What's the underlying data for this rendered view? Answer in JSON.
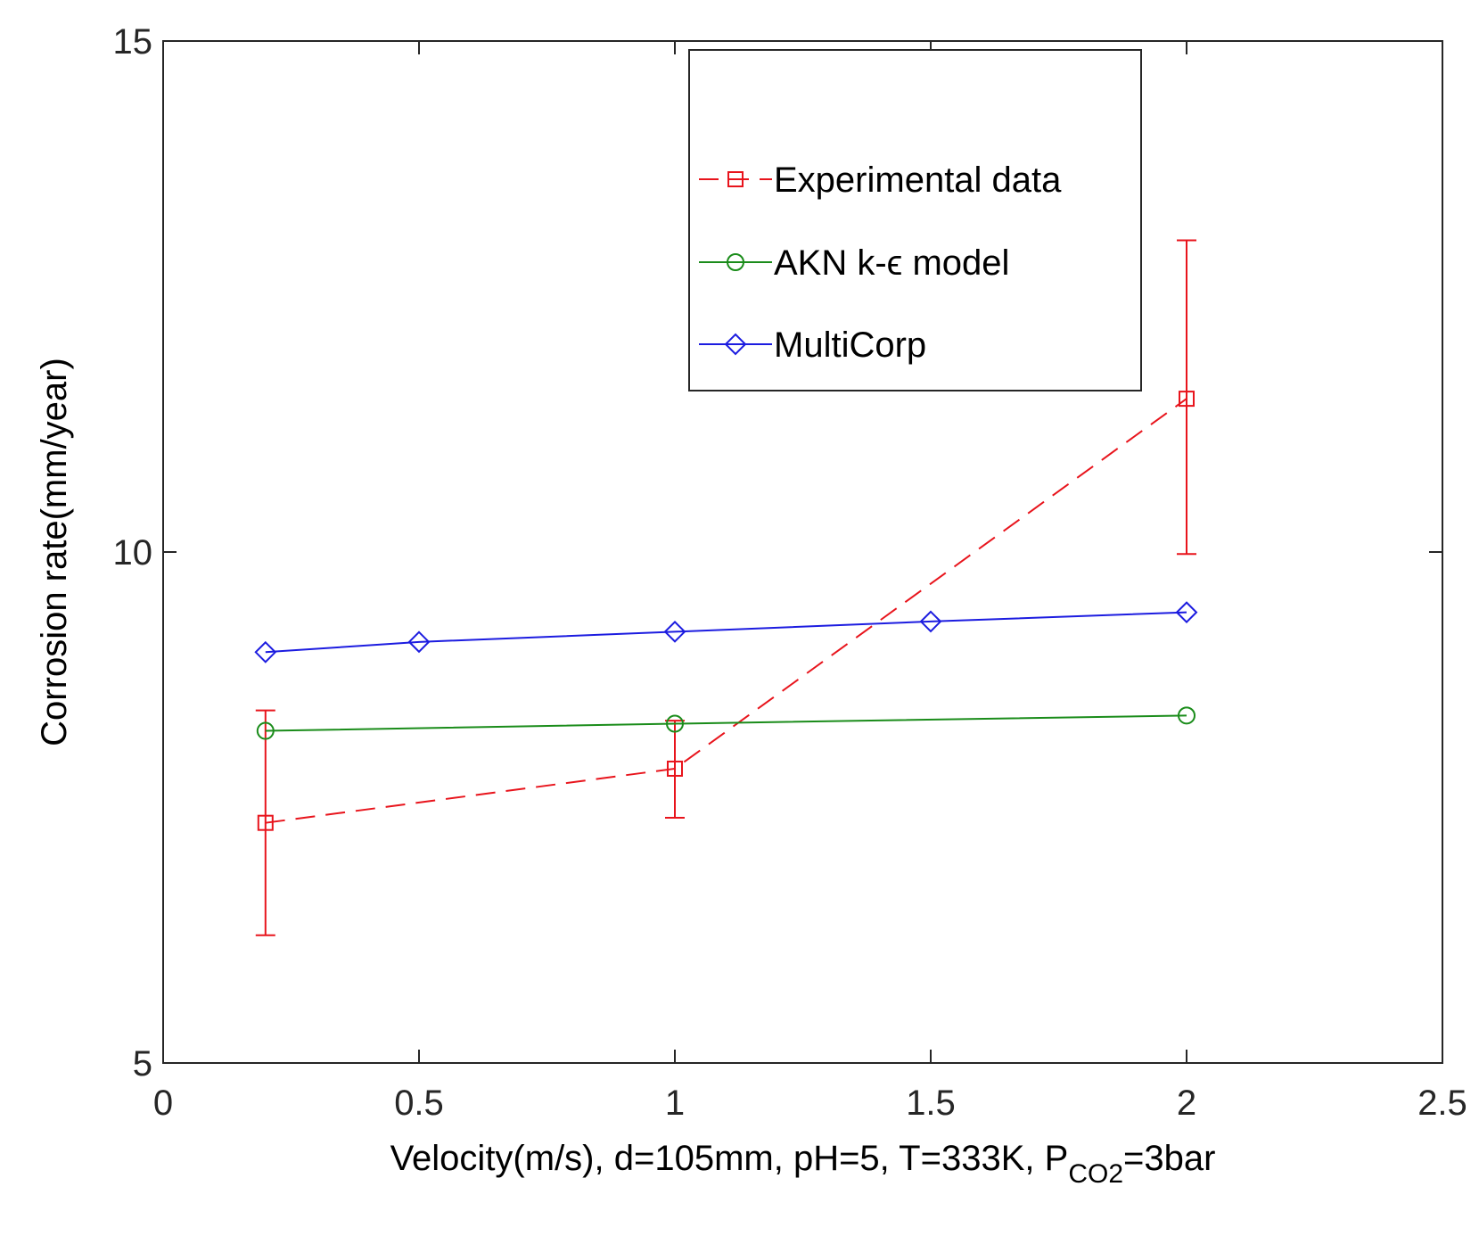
{
  "chart_data": {
    "type": "line",
    "title": "",
    "xlabel": {
      "main": "Velocity(m/s), d=105mm, pH=5, T=333K, P",
      "subscript": "CO2",
      "suffix": "=3bar"
    },
    "ylabel": "Corrosion rate(mm/year)",
    "xlim": [
      0,
      2.5
    ],
    "ylim": [
      5,
      15
    ],
    "xticks": [
      0,
      0.5,
      1,
      1.5,
      2,
      2.5
    ],
    "xtick_labels": [
      "0",
      "0.5",
      "1",
      "1.5",
      "2",
      "2.5"
    ],
    "yticks": [
      5,
      10,
      15
    ],
    "ytick_labels": [
      "5",
      "10",
      "15"
    ],
    "grid": false,
    "legend_position": "top-right",
    "series": [
      {
        "name": "Experimental data",
        "color": "#e8141c",
        "line_style": "dashed",
        "marker": "square",
        "x": [
          0.2,
          1,
          2
        ],
        "y": [
          7.35,
          7.88,
          11.5
        ],
        "error_low": [
          6.25,
          7.4,
          9.98
        ],
        "error_high": [
          8.45,
          8.35,
          13.05
        ]
      },
      {
        "name": "AKN k-ϵ model",
        "color": "#1a8c1a",
        "line_style": "solid",
        "marker": "circle",
        "x": [
          0.2,
          1,
          2
        ],
        "y": [
          8.25,
          8.32,
          8.4
        ]
      },
      {
        "name": "MultiCorp",
        "color": "#1c1ce0",
        "line_style": "solid",
        "marker": "diamond",
        "x": [
          0.2,
          0.5,
          1,
          1.5,
          2
        ],
        "y": [
          9.02,
          9.12,
          9.22,
          9.32,
          9.41
        ]
      }
    ]
  }
}
